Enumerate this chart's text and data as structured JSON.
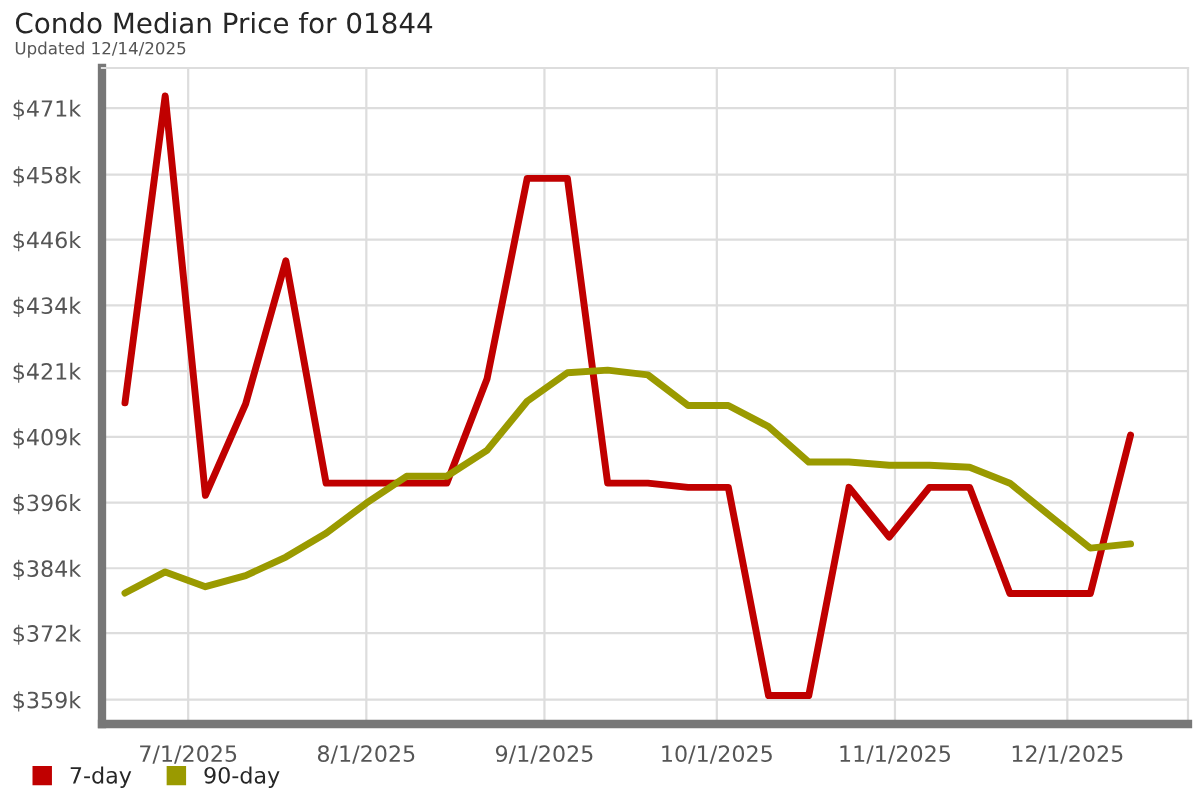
{
  "chart_data": {
    "type": "line",
    "title": "Condo Median Price for 01844",
    "subtitle": "Updated 12/14/2025",
    "x": [
      "2025-06-20",
      "2025-06-27",
      "2025-07-04",
      "2025-07-11",
      "2025-07-18",
      "2025-07-25",
      "2025-08-01",
      "2025-08-08",
      "2025-08-15",
      "2025-08-22",
      "2025-08-29",
      "2025-09-05",
      "2025-09-12",
      "2025-09-19",
      "2025-09-26",
      "2025-10-03",
      "2025-10-10",
      "2025-10-17",
      "2025-10-24",
      "2025-10-31",
      "2025-11-07",
      "2025-11-14",
      "2025-11-21",
      "2025-11-28",
      "2025-12-05",
      "2025-12-12"
    ],
    "series": [
      {
        "name": "7-day",
        "color": "#c00000",
        "values": [
          415.2,
          473.3,
          397.7,
          415,
          442.1,
          400,
          400,
          400,
          400,
          419.7,
          457.7,
          457.7,
          400,
          400,
          399.2,
          399.2,
          359.8,
          359.8,
          399.2,
          389.8,
          399.2,
          399.2,
          379.1,
          379.1,
          379.1,
          409.1
        ]
      },
      {
        "name": "90-day",
        "color": "#9a9a00",
        "values": [
          379.2,
          383.2,
          380.4,
          382.5,
          386,
          390.5,
          396.2,
          401.3,
          401.3,
          406.2,
          415.5,
          420.9,
          421.4,
          420.5,
          414.7,
          414.7,
          410.7,
          404,
          404,
          403.4,
          403.4,
          403,
          400,
          393.8,
          387.7,
          388.5
        ]
      }
    ],
    "xlim": [
      "2025-06-16",
      "2025-12-22"
    ],
    "xticks": [
      {
        "value": "2025-07-01",
        "label": "7/1/2025"
      },
      {
        "value": "2025-08-01",
        "label": "8/1/2025"
      },
      {
        "value": "2025-09-01",
        "label": "9/1/2025"
      },
      {
        "value": "2025-10-01",
        "label": "10/1/2025"
      },
      {
        "value": "2025-11-01",
        "label": "11/1/2025"
      },
      {
        "value": "2025-12-01",
        "label": "12/1/2025"
      }
    ],
    "ylim": [
      354.4,
      478.6
    ],
    "yticks": [
      {
        "value": 359,
        "label": "$359k"
      },
      {
        "value": 371.6,
        "label": "$372k"
      },
      {
        "value": 383.89,
        "label": "$384k"
      },
      {
        "value": 396.33,
        "label": "$396k"
      },
      {
        "value": 408.78,
        "label": "$409k"
      },
      {
        "value": 421.22,
        "label": "$421k"
      },
      {
        "value": 433.67,
        "label": "$434k"
      },
      {
        "value": 446.11,
        "label": "$446k"
      },
      {
        "value": 458.4,
        "label": "$458k"
      },
      {
        "value": 471,
        "label": "$471k"
      }
    ],
    "grid": true,
    "legend": "bottom",
    "marker": "none",
    "line_style": "solid"
  }
}
